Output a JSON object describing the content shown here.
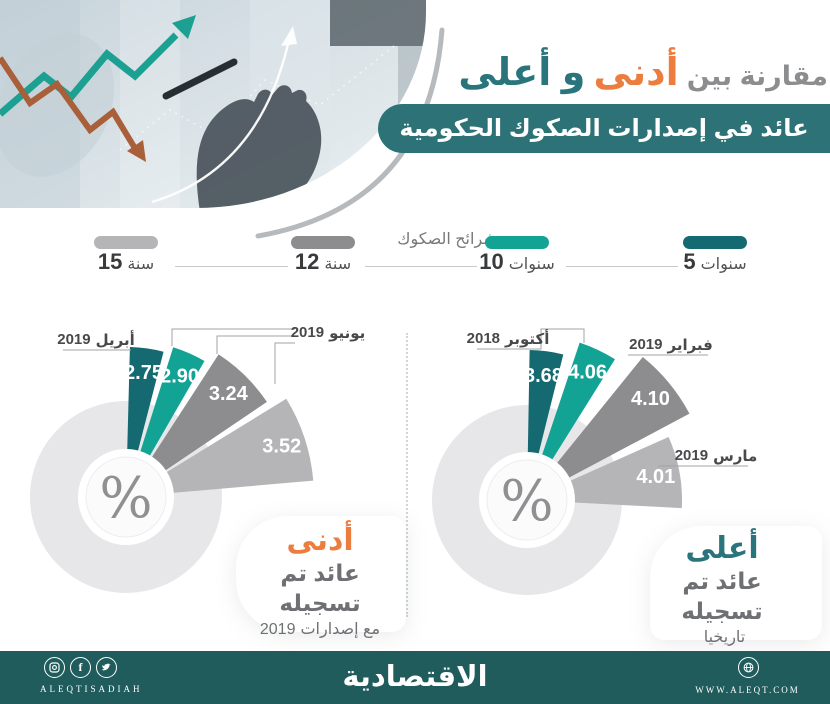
{
  "header": {
    "title_prefix": "مقارنة بين",
    "title_lowest": "أدنى",
    "title_highest": "و أعلى",
    "banner": "عائد في إصدارات الصكوك الحكومية"
  },
  "legend": {
    "title": "شرائح الصكوك",
    "items": [
      {
        "num": "5",
        "word": "سنوات",
        "color": "#156970"
      },
      {
        "num": "10",
        "word": "سنوات",
        "color": "#12a395"
      },
      {
        "num": "12",
        "word": "سنة",
        "color": "#8d8d8f"
      },
      {
        "num": "15",
        "word": "سنة",
        "color": "#b5b5b7"
      }
    ]
  },
  "colors": {
    "teal_dark": "#156970",
    "teal": "#12a395",
    "gray": "#8d8d8f",
    "gray_light": "#b5b5b7",
    "donut_bg": "#e7e7e9",
    "lowest_accent": "#ed7d3e",
    "highest_accent": "#2a757c",
    "banner_bg": "#2d7276",
    "footer_bg": "#215c5d"
  },
  "chart_data": [
    {
      "type": "pie",
      "variant": "exploded-fan-donut",
      "unit": "%",
      "center_symbol": "%",
      "title": "أدنى عائد تم تسجيله مع إصدارات 2019",
      "categories": [
        "5 سنوات",
        "10 سنوات",
        "12 سنة",
        "15 سنة"
      ],
      "series": [
        {
          "tranche": "5 سنوات",
          "value": 2.75,
          "display": "2.75",
          "month": "أبريل 2019",
          "color": "#156970"
        },
        {
          "tranche": "10 سنوات",
          "value": 2.9,
          "display": "2.90",
          "month": "يونيو 2019",
          "color": "#12a395"
        },
        {
          "tranche": "12 سنة",
          "value": 3.24,
          "display": "3.24",
          "month": "يونيو 2019",
          "color": "#8d8d8f"
        },
        {
          "tranche": "15 سنة",
          "value": 3.52,
          "display": "3.52",
          "month": "يونيو 2019",
          "color": "#b5b5b7"
        }
      ],
      "callouts": [
        {
          "word": "أبريل",
          "year": "2019"
        },
        {
          "word": "يونيو",
          "year": "2019"
        }
      ],
      "caption": {
        "headline": "أدنى",
        "line1": "عائد تم تسجيله",
        "line2_num": "2019",
        "line2_word": "مع إصدارات"
      }
    },
    {
      "type": "pie",
      "variant": "exploded-fan-donut",
      "unit": "%",
      "center_symbol": "%",
      "title": "أعلى عائد تم تسجيله تاريخيا",
      "categories": [
        "5 سنوات",
        "10 سنوات",
        "12 سنة",
        "15 سنة"
      ],
      "series": [
        {
          "tranche": "5 سنوات",
          "value": 3.68,
          "display": "3.68",
          "month": "أكتوبر 2018",
          "color": "#156970"
        },
        {
          "tranche": "10 سنوات",
          "value": 4.06,
          "display": "4.06",
          "month": "أكتوبر 2018",
          "color": "#12a395"
        },
        {
          "tranche": "12 سنة",
          "value": 4.1,
          "display": "4.10",
          "month": "فبراير 2019",
          "color": "#8d8d8f"
        },
        {
          "tranche": "15 سنة",
          "value": 4.01,
          "display": "4.01",
          "month": "مارس 2019",
          "color": "#b5b5b7"
        }
      ],
      "callouts": [
        {
          "word": "أكتوبر",
          "year": "2018"
        },
        {
          "word": "فبراير",
          "year": "2019"
        },
        {
          "word": "مارس",
          "year": "2019"
        }
      ],
      "caption": {
        "headline": "أعلى",
        "line1": "عائد تم تسجيله",
        "line2_num": "",
        "line2_word": "تاريخيا"
      }
    }
  ],
  "footer": {
    "brand_latin": "ALEQTISADIAH",
    "brand_arabic": "الاقتصادية",
    "website": "WWW.ALEQT.COM",
    "social": [
      "instagram",
      "facebook",
      "twitter"
    ]
  }
}
